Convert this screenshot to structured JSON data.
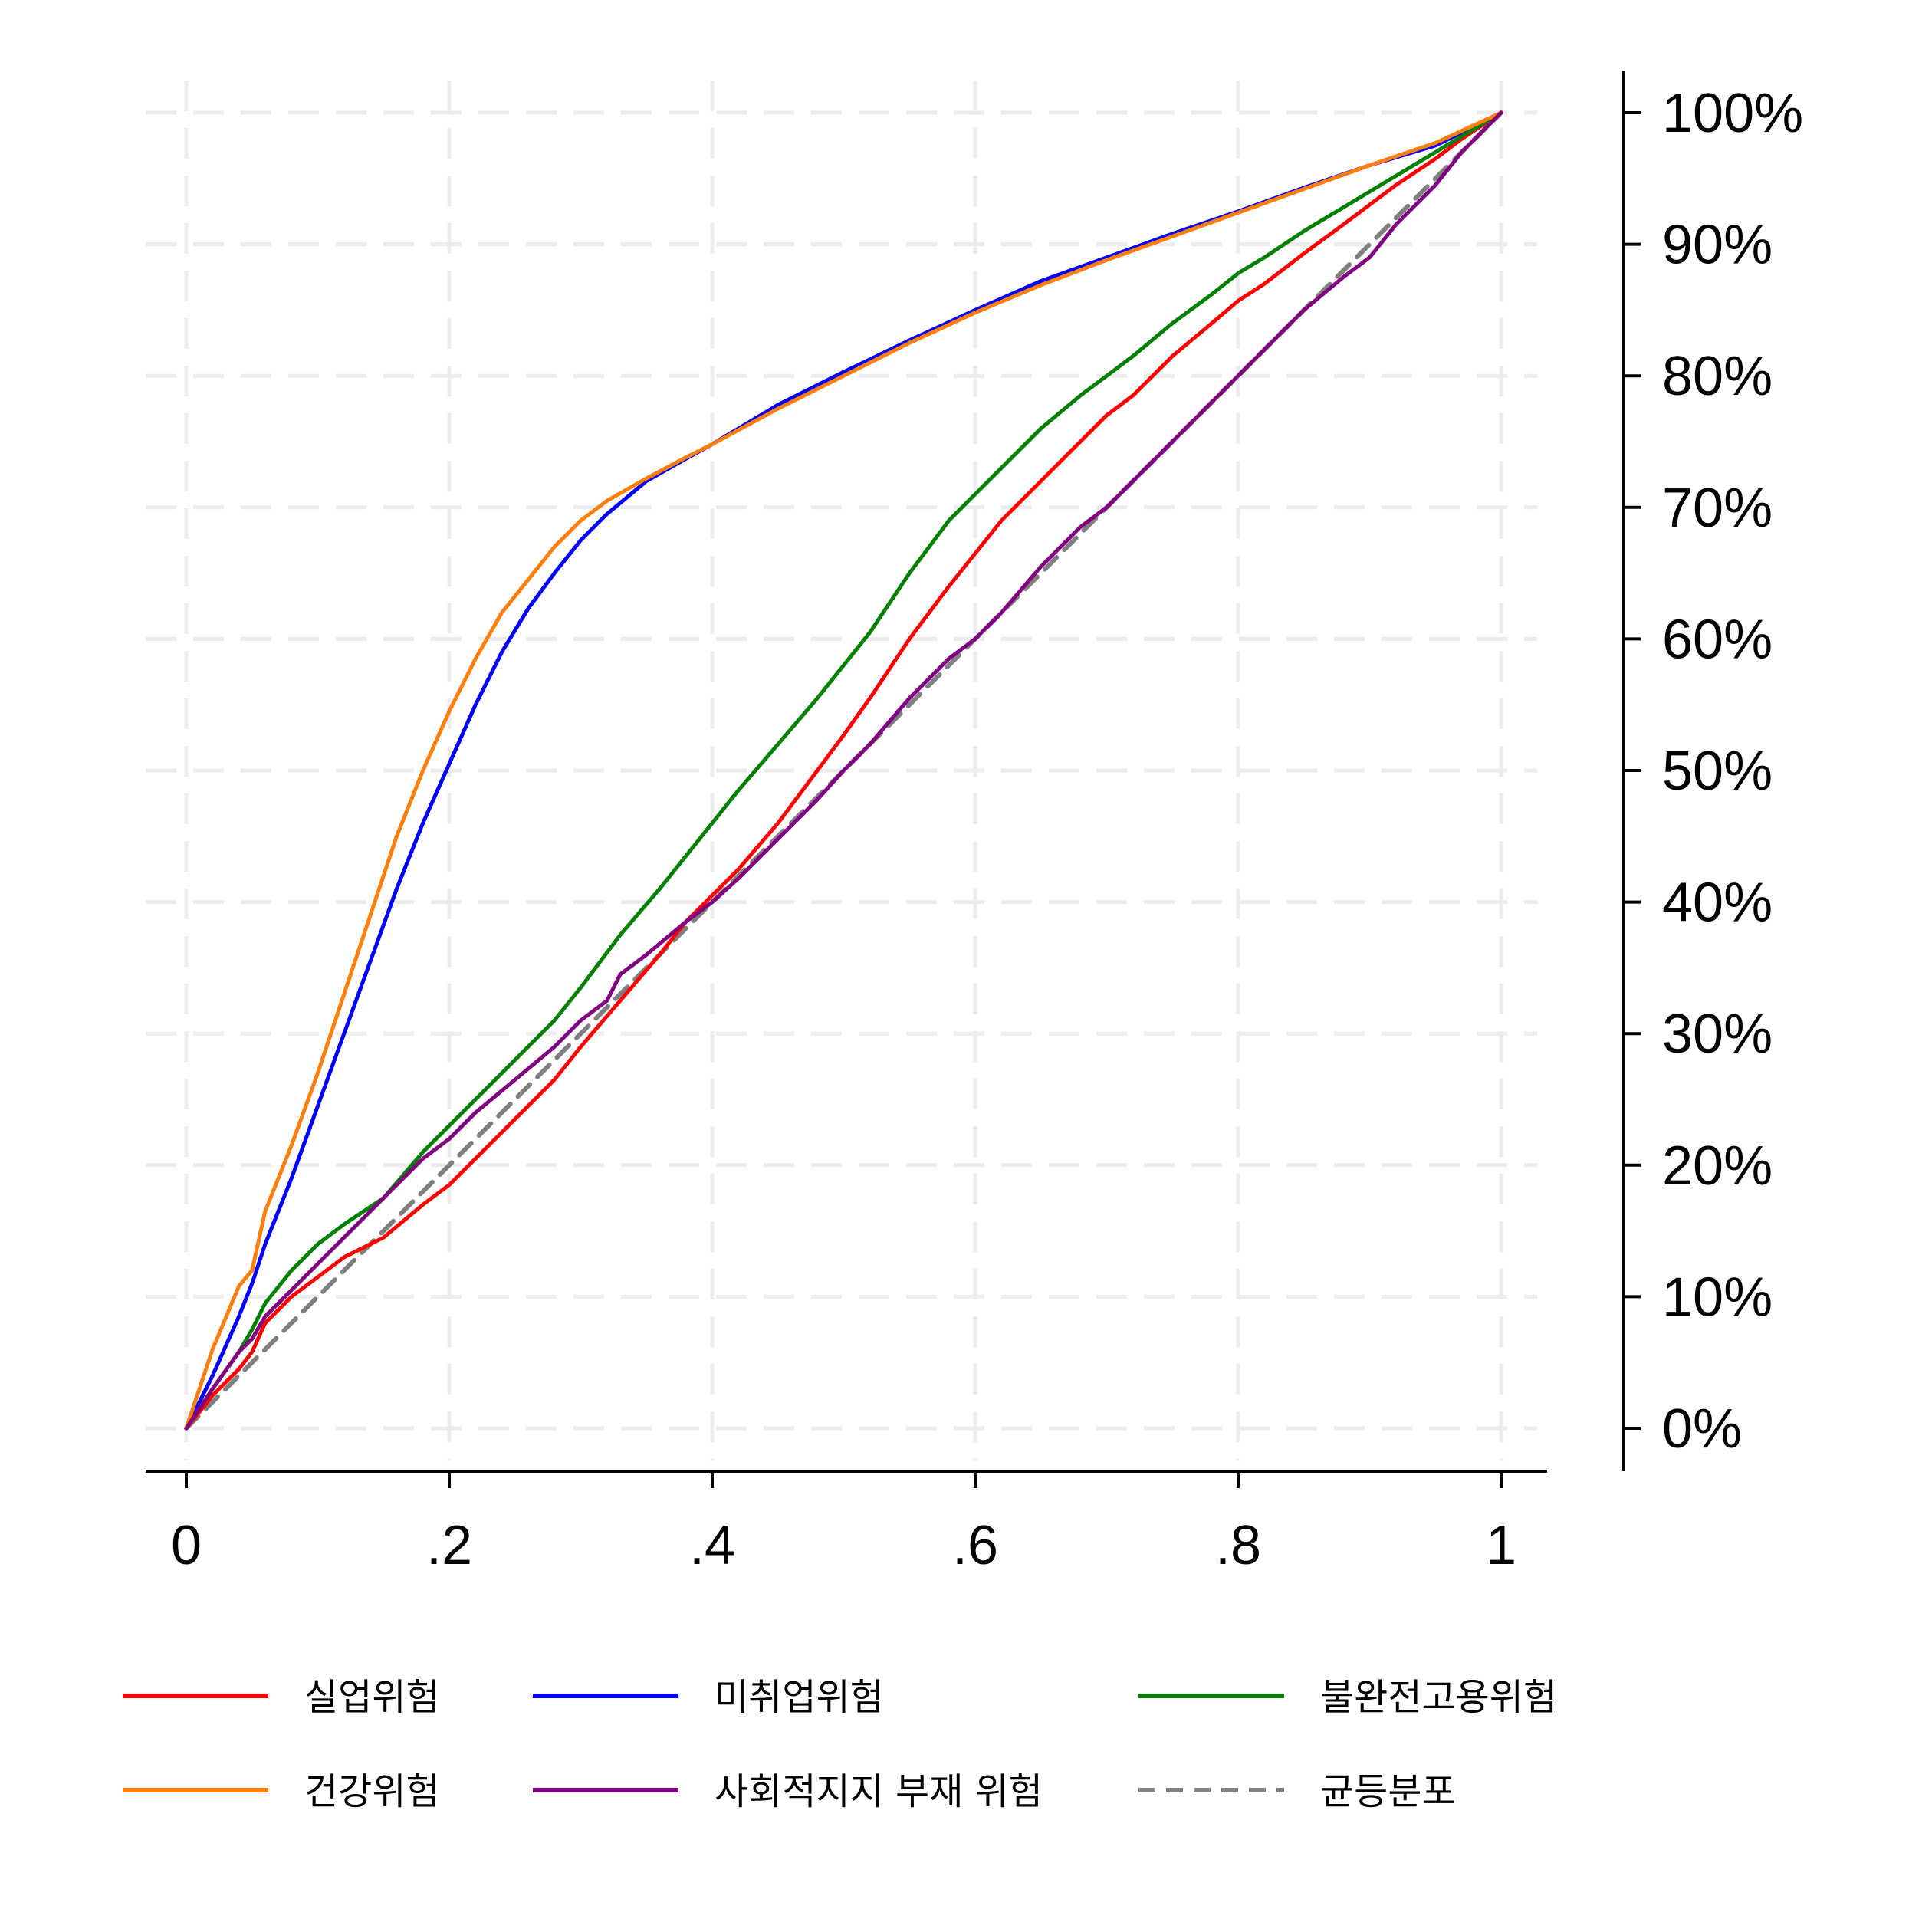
{
  "chart_data": {
    "type": "line",
    "title": "",
    "xlabel": "",
    "ylabel": "",
    "xlim": [
      0,
      1
    ],
    "ylim": [
      0,
      1
    ],
    "y_axis_position": "right",
    "grid": true,
    "legend_position": "bottom",
    "x_ticks": [
      {
        "value": 0,
        "label": "0"
      },
      {
        "value": 0.2,
        "label": ".2"
      },
      {
        "value": 0.4,
        "label": ".4"
      },
      {
        "value": 0.6,
        "label": ".6"
      },
      {
        "value": 0.8,
        "label": ".8"
      },
      {
        "value": 1,
        "label": "1"
      }
    ],
    "y_ticks": [
      {
        "value": 0,
        "label": "0%"
      },
      {
        "value": 0.1,
        "label": "10%"
      },
      {
        "value": 0.2,
        "label": "20%"
      },
      {
        "value": 0.3,
        "label": "30%"
      },
      {
        "value": 0.4,
        "label": "40%"
      },
      {
        "value": 0.5,
        "label": "50%"
      },
      {
        "value": 0.6,
        "label": "60%"
      },
      {
        "value": 0.7,
        "label": "70%"
      },
      {
        "value": 0.8,
        "label": "80%"
      },
      {
        "value": 0.9,
        "label": "90%"
      },
      {
        "value": 1,
        "label": "100%"
      }
    ],
    "series": [
      {
        "name": "실업위험",
        "color": "#ff0000",
        "dash": false,
        "x": [
          0,
          0.02,
          0.04,
          0.05,
          0.06,
          0.08,
          0.1,
          0.12,
          0.15,
          0.18,
          0.2,
          0.22,
          0.25,
          0.28,
          0.3,
          0.33,
          0.36,
          0.38,
          0.4,
          0.42,
          0.45,
          0.48,
          0.5,
          0.52,
          0.55,
          0.58,
          0.6,
          0.62,
          0.65,
          0.68,
          0.7,
          0.72,
          0.75,
          0.78,
          0.8,
          0.82,
          0.85,
          0.88,
          0.9,
          0.92,
          0.95,
          0.97,
          1
        ],
        "y": [
          0,
          0.025,
          0.045,
          0.058,
          0.08,
          0.1,
          0.115,
          0.13,
          0.145,
          0.17,
          0.185,
          0.205,
          0.235,
          0.265,
          0.29,
          0.325,
          0.36,
          0.385,
          0.405,
          0.425,
          0.46,
          0.5,
          0.527,
          0.555,
          0.6,
          0.64,
          0.665,
          0.69,
          0.72,
          0.75,
          0.77,
          0.785,
          0.815,
          0.84,
          0.857,
          0.87,
          0.893,
          0.915,
          0.93,
          0.945,
          0.965,
          0.98,
          1
        ]
      },
      {
        "name": "미취업위험",
        "color": "#0000ff",
        "dash": false,
        "x": [
          0,
          0.02,
          0.04,
          0.05,
          0.06,
          0.08,
          0.1,
          0.12,
          0.14,
          0.16,
          0.18,
          0.2,
          0.22,
          0.24,
          0.26,
          0.28,
          0.3,
          0.32,
          0.35,
          0.38,
          0.4,
          0.45,
          0.5,
          0.55,
          0.6,
          0.65,
          0.7,
          0.75,
          0.8,
          0.85,
          0.9,
          0.95,
          1
        ],
        "y": [
          0,
          0.04,
          0.085,
          0.11,
          0.14,
          0.19,
          0.245,
          0.3,
          0.355,
          0.41,
          0.46,
          0.505,
          0.55,
          0.59,
          0.623,
          0.65,
          0.675,
          0.695,
          0.72,
          0.737,
          0.748,
          0.778,
          0.803,
          0.827,
          0.85,
          0.872,
          0.89,
          0.908,
          0.925,
          0.943,
          0.96,
          0.975,
          1
        ]
      },
      {
        "name": "불완전고용위험",
        "color": "#008000",
        "dash": false,
        "x": [
          0,
          0.02,
          0.04,
          0.05,
          0.06,
          0.08,
          0.1,
          0.12,
          0.15,
          0.18,
          0.2,
          0.22,
          0.25,
          0.28,
          0.3,
          0.33,
          0.36,
          0.38,
          0.4,
          0.42,
          0.45,
          0.48,
          0.5,
          0.52,
          0.55,
          0.58,
          0.6,
          0.62,
          0.65,
          0.68,
          0.7,
          0.72,
          0.75,
          0.78,
          0.8,
          0.82,
          0.85,
          0.88,
          0.9,
          0.92,
          0.95,
          0.97,
          1
        ],
        "y": [
          0,
          0.03,
          0.058,
          0.075,
          0.095,
          0.12,
          0.14,
          0.155,
          0.175,
          0.21,
          0.23,
          0.25,
          0.28,
          0.31,
          0.335,
          0.375,
          0.41,
          0.435,
          0.46,
          0.485,
          0.52,
          0.555,
          0.58,
          0.605,
          0.65,
          0.69,
          0.71,
          0.73,
          0.76,
          0.785,
          0.8,
          0.815,
          0.84,
          0.862,
          0.878,
          0.89,
          0.91,
          0.928,
          0.94,
          0.952,
          0.97,
          0.982,
          1
        ]
      },
      {
        "name": "건강위험",
        "color": "#ff7f0e",
        "dash": false,
        "x": [
          0,
          0.02,
          0.04,
          0.05,
          0.06,
          0.08,
          0.1,
          0.12,
          0.14,
          0.16,
          0.18,
          0.2,
          0.22,
          0.24,
          0.26,
          0.28,
          0.3,
          0.32,
          0.35,
          0.38,
          0.4,
          0.45,
          0.5,
          0.55,
          0.6,
          0.65,
          0.7,
          0.75,
          0.8,
          0.85,
          0.9,
          0.95,
          1
        ],
        "y": [
          0,
          0.06,
          0.108,
          0.12,
          0.165,
          0.215,
          0.27,
          0.33,
          0.39,
          0.45,
          0.5,
          0.545,
          0.585,
          0.62,
          0.645,
          0.67,
          0.69,
          0.705,
          0.722,
          0.738,
          0.748,
          0.775,
          0.8,
          0.825,
          0.848,
          0.869,
          0.888,
          0.906,
          0.924,
          0.942,
          0.96,
          0.977,
          1
        ]
      },
      {
        "name": "사회적지지 부재 위험",
        "color": "#800080",
        "dash": false,
        "x": [
          0,
          0.02,
          0.04,
          0.05,
          0.06,
          0.08,
          0.1,
          0.12,
          0.15,
          0.18,
          0.2,
          0.22,
          0.25,
          0.28,
          0.3,
          0.32,
          0.33,
          0.35,
          0.38,
          0.4,
          0.42,
          0.45,
          0.48,
          0.5,
          0.52,
          0.55,
          0.58,
          0.6,
          0.62,
          0.65,
          0.68,
          0.7,
          0.72,
          0.75,
          0.78,
          0.8,
          0.82,
          0.85,
          0.88,
          0.9,
          0.92,
          0.95,
          0.97,
          1
        ],
        "y": [
          0,
          0.03,
          0.058,
          0.068,
          0.085,
          0.105,
          0.125,
          0.145,
          0.175,
          0.205,
          0.22,
          0.24,
          0.265,
          0.29,
          0.31,
          0.325,
          0.345,
          0.36,
          0.385,
          0.4,
          0.418,
          0.448,
          0.478,
          0.5,
          0.52,
          0.555,
          0.585,
          0.6,
          0.62,
          0.655,
          0.685,
          0.7,
          0.72,
          0.75,
          0.78,
          0.8,
          0.82,
          0.85,
          0.875,
          0.89,
          0.915,
          0.945,
          0.97,
          1
        ]
      },
      {
        "name": "균등분포",
        "color": "#808080",
        "dash": true,
        "x": [
          0,
          1
        ],
        "y": [
          0,
          1
        ]
      }
    ]
  }
}
